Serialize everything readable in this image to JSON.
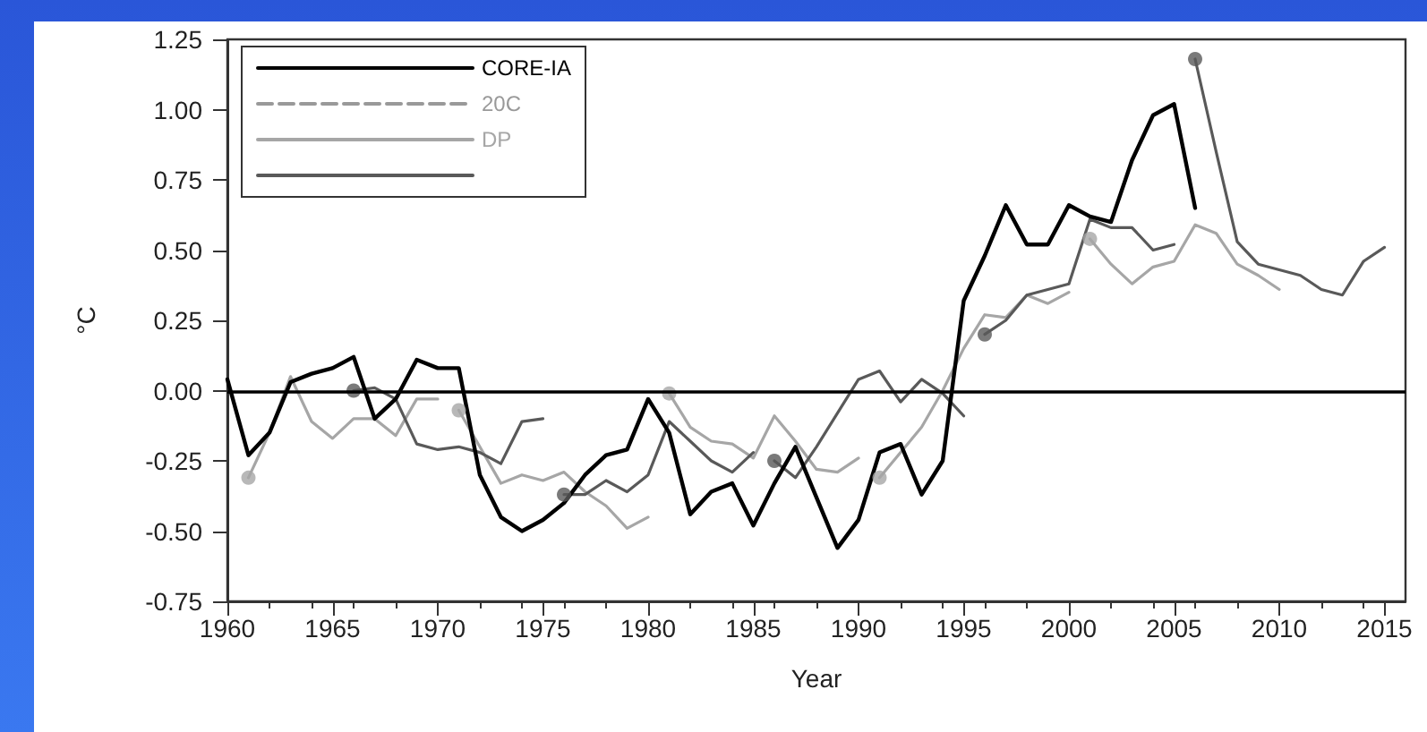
{
  "chart_data": {
    "type": "line",
    "xlabel": "Year",
    "ylabel": "°C",
    "xlim": [
      1960,
      2016
    ],
    "xticks": [
      1960,
      1965,
      1970,
      1975,
      1980,
      1985,
      1990,
      1995,
      2000,
      2005,
      2010,
      2015
    ],
    "ylim": [
      -0.75,
      1.25
    ],
    "yticks": [
      {
        "value": -0.75,
        "label": "-0.75"
      },
      {
        "value": -0.5,
        "label": "-0.50"
      },
      {
        "value": -0.25,
        "label": "-0.25"
      },
      {
        "value": 0,
        "label": "0.00"
      },
      {
        "value": 0.25,
        "label": "0.25"
      },
      {
        "value": 0.5,
        "label": "0.50"
      },
      {
        "value": 0.75,
        "label": "0.75"
      },
      {
        "value": 1,
        "label": "1.00"
      },
      {
        "value": 1.25,
        "label": "1.25"
      }
    ],
    "grid": false,
    "legend": "top left",
    "ref_lines": [
      {
        "axis": "y",
        "value": 0,
        "color": "#000000"
      }
    ],
    "series": [
      {
        "name": "CORE-IA",
        "color": "#000000",
        "line_style": "solid",
        "x": [
          1960,
          1961,
          1962,
          1963,
          1964,
          1965,
          1966,
          1967,
          1968,
          1969,
          1970,
          1971,
          1972,
          1973,
          1974,
          1975,
          1976,
          1977,
          1978,
          1979,
          1980,
          1981,
          1982,
          1983,
          1984,
          1985,
          1986,
          1987,
          1988,
          1989,
          1990,
          1991,
          1992,
          1993,
          1994,
          1995,
          1996,
          1997,
          1998,
          1999,
          2000,
          2001,
          2002,
          2003,
          2004,
          2005,
          2006
        ],
        "values": [
          0.04,
          -0.23,
          -0.15,
          0.03,
          0.06,
          0.08,
          0.12,
          -0.1,
          -0.03,
          0.11,
          0.08,
          0.08,
          -0.3,
          -0.45,
          -0.5,
          -0.46,
          -0.4,
          -0.3,
          -0.23,
          -0.21,
          -0.03,
          -0.15,
          -0.44,
          -0.36,
          -0.33,
          -0.48,
          -0.33,
          -0.2,
          -0.38,
          -0.56,
          -0.46,
          -0.22,
          -0.19,
          -0.37,
          -0.25,
          0.32,
          0.48,
          0.66,
          0.52,
          0.52,
          0.66,
          0.62,
          0.6,
          0.82,
          0.98,
          1.02,
          0.65
        ]
      },
      {
        "name": "20C",
        "color": "#999999",
        "line_style": "dashed"
      },
      {
        "name": "DP",
        "color": "#a6a6a6",
        "line_style": "solid",
        "x": [
          1961,
          1962,
          1963,
          1964,
          1965,
          1966,
          1967,
          1968,
          1969,
          1970
        ],
        "values": [
          -0.31,
          -0.15,
          0.05,
          -0.11,
          -0.17,
          -0.1,
          -0.1,
          -0.16,
          -0.03,
          -0.03
        ]
      },
      {
        "color": "#a6a6a6",
        "line_style": "solid",
        "x": [
          1971,
          1972,
          1973,
          1974,
          1975,
          1976,
          1977,
          1978,
          1979,
          1980
        ],
        "values": [
          -0.07,
          -0.2,
          -0.33,
          -0.3,
          -0.32,
          -0.29,
          -0.36,
          -0.41,
          -0.49,
          -0.45
        ]
      },
      {
        "color": "#a6a6a6",
        "line_style": "solid",
        "x": [
          1981,
          1982,
          1983,
          1984,
          1985,
          1986,
          1987,
          1988,
          1989,
          1990
        ],
        "values": [
          -0.01,
          -0.13,
          -0.18,
          -0.19,
          -0.24,
          -0.09,
          -0.18,
          -0.28,
          -0.29,
          -0.24
        ]
      },
      {
        "color": "#a6a6a6",
        "line_style": "solid",
        "x": [
          1991,
          1992,
          1993,
          1994,
          1995,
          1996,
          1997,
          1998,
          1999,
          2000
        ],
        "values": [
          -0.31,
          -0.22,
          -0.13,
          0.0,
          0.15,
          0.27,
          0.26,
          0.34,
          0.31,
          0.35
        ]
      },
      {
        "color": "#a6a6a6",
        "line_style": "solid",
        "x": [
          2001,
          2002,
          2003,
          2004,
          2005,
          2006,
          2007,
          2008,
          2009,
          2010
        ],
        "values": [
          0.54,
          0.45,
          0.38,
          0.44,
          0.46,
          0.59,
          0.56,
          0.45,
          0.41,
          0.36
        ]
      },
      {
        "type": "scatter",
        "color": "#a6a6a6",
        "marker": "circle",
        "x": [
          1961,
          1971,
          1981,
          1991,
          2001
        ],
        "values": [
          -0.31,
          -0.07,
          -0.01,
          -0.31,
          0.54
        ]
      },
      {
        "color": "#595959",
        "line_style": "solid",
        "x": [
          1966,
          1967,
          1968,
          1969,
          1970,
          1971,
          1972,
          1973,
          1974,
          1975
        ],
        "values": [
          0.0,
          0.01,
          -0.03,
          -0.19,
          -0.21,
          -0.2,
          -0.22,
          -0.26,
          -0.11,
          -0.1
        ]
      },
      {
        "color": "#595959",
        "line_style": "solid",
        "x": [
          1976,
          1977,
          1978,
          1979,
          1980,
          1981,
          1982,
          1983,
          1984,
          1985
        ],
        "values": [
          -0.37,
          -0.37,
          -0.32,
          -0.36,
          -0.3,
          -0.11,
          -0.18,
          -0.25,
          -0.29,
          -0.22
        ]
      },
      {
        "color": "#595959",
        "line_style": "solid",
        "x": [
          1986,
          1987,
          1988,
          1989,
          1990,
          1991,
          1992,
          1993,
          1994,
          1995
        ],
        "values": [
          -0.25,
          -0.31,
          -0.2,
          -0.08,
          0.04,
          0.07,
          -0.04,
          0.04,
          -0.01,
          -0.09
        ]
      },
      {
        "color": "#595959",
        "line_style": "solid",
        "x": [
          1996,
          1997,
          1998,
          1999,
          2000,
          2001,
          2002,
          2003,
          2004,
          2005
        ],
        "values": [
          0.2,
          0.25,
          0.34,
          0.36,
          0.38,
          0.61,
          0.58,
          0.58,
          0.5,
          0.52
        ]
      },
      {
        "color": "#595959",
        "line_style": "solid",
        "x": [
          2006,
          2007,
          2008,
          2009,
          2010,
          2011,
          2012,
          2013,
          2014,
          2015
        ],
        "values": [
          1.18,
          0.85,
          0.53,
          0.45,
          0.43,
          0.41,
          0.36,
          0.34,
          0.46,
          0.51
        ]
      },
      {
        "type": "scatter",
        "color": "#595959",
        "marker": "circle",
        "x": [
          1966,
          1976,
          1986,
          1996,
          2006
        ],
        "values": [
          0.0,
          -0.37,
          -0.25,
          0.2,
          1.18
        ]
      }
    ]
  }
}
